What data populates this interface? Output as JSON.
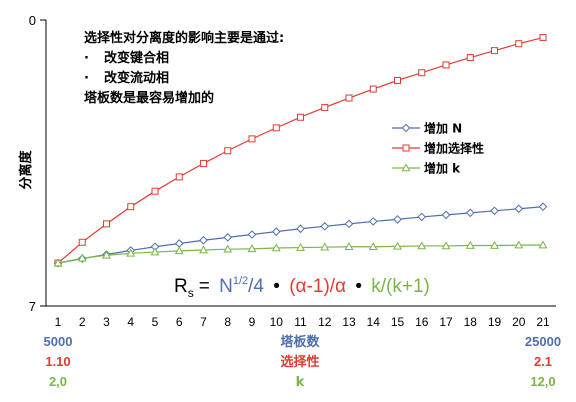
{
  "chart_data": {
    "type": "line",
    "ylabel": "分离度",
    "ylim": [
      0,
      7
    ],
    "yticks": [
      "0",
      "7"
    ],
    "x": [
      1,
      2,
      3,
      4,
      5,
      6,
      7,
      8,
      9,
      10,
      11,
      12,
      13,
      14,
      15,
      16,
      17,
      18,
      19,
      20,
      21
    ],
    "series": [
      {
        "name": "增加 N",
        "color": "#4f6fad",
        "marker": "diamond",
        "values": [
          1.05,
          1.16,
          1.26,
          1.36,
          1.45,
          1.53,
          1.61,
          1.68,
          1.75,
          1.82,
          1.89,
          1.95,
          2.01,
          2.07,
          2.12,
          2.18,
          2.23,
          2.28,
          2.33,
          2.38,
          2.43
        ]
      },
      {
        "name": "增加选择性",
        "color": "#e03c31",
        "marker": "square",
        "values": [
          1.05,
          1.56,
          2.01,
          2.43,
          2.81,
          3.16,
          3.49,
          3.8,
          4.09,
          4.36,
          4.62,
          4.86,
          5.09,
          5.31,
          5.52,
          5.71,
          5.9,
          6.08,
          6.25,
          6.42,
          6.57
        ]
      },
      {
        "name": "增加 k",
        "color": "#7ab648",
        "marker": "triangle",
        "values": [
          1.05,
          1.17,
          1.24,
          1.29,
          1.32,
          1.35,
          1.37,
          1.39,
          1.4,
          1.42,
          1.43,
          1.44,
          1.45,
          1.45,
          1.46,
          1.47,
          1.47,
          1.48,
          1.48,
          1.49,
          1.49
        ]
      }
    ],
    "grid": false,
    "legend_position": "right",
    "annotation": {
      "line1": "选择性对分离度的影响主要是通过:",
      "bullet1": "改变键合相",
      "bullet2": "改变流动相",
      "line4": "塔板数是最容易增加的",
      "bullet_mark": "·"
    },
    "formula": {
      "R": "R",
      "sub": "s",
      "eq": "=",
      "N": "N",
      "exp": "1/2",
      "n_rest": "/4",
      "dot": "•",
      "alpha": "(α-1)/α",
      "k": "k/(k+1)"
    },
    "scale_rows": [
      {
        "label": "塔板数",
        "left": "5000",
        "right": "25000",
        "color": "#4f6fad"
      },
      {
        "label": "选择性",
        "left": "1.10",
        "right": "2.1",
        "color": "#e03c31"
      },
      {
        "label": "k",
        "left": "2,0",
        "right": "12,0",
        "color": "#7ab648"
      }
    ]
  }
}
